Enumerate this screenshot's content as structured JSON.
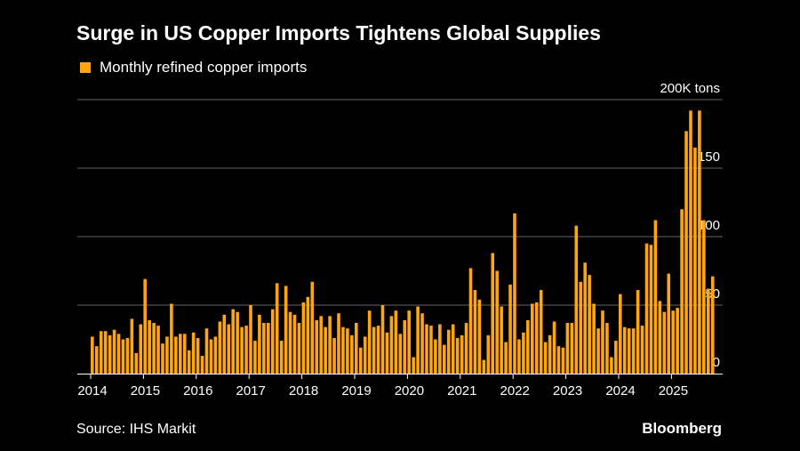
{
  "header": {
    "title": "Surge in US Copper Imports Tightens Global Supplies",
    "legend_label": "Monthly refined copper imports"
  },
  "footer": {
    "source": "Source: IHS Markit",
    "brand": "Bloomberg"
  },
  "colors": {
    "bar": "#ffa60f",
    "grid": "#666666",
    "background": "#000000"
  },
  "chart_data": {
    "type": "bar",
    "title": "Surge in US Copper Imports Tightens Global Supplies",
    "legend": [
      "Monthly refined copper imports"
    ],
    "xlabel": "",
    "ylabel": "tons",
    "unit_label": "200K tons",
    "ylim": [
      0,
      200
    ],
    "y_ticks": [
      {
        "value": 0,
        "label": "0"
      },
      {
        "value": 50,
        "label": "50"
      },
      {
        "value": 100,
        "label": "100"
      },
      {
        "value": 150,
        "label": "150"
      },
      {
        "value": 200,
        "label": "200K tons"
      }
    ],
    "x_ticks": [
      "2014",
      "2015",
      "2016",
      "2017",
      "2018",
      "2019",
      "2020",
      "2021",
      "2022",
      "2023",
      "2024",
      "2025"
    ],
    "start": "2014-01",
    "values": [
      27,
      20,
      31,
      31,
      28,
      32,
      29,
      25,
      26,
      40,
      15,
      36,
      69,
      39,
      37,
      35,
      22,
      27,
      51,
      27,
      29,
      29,
      17,
      30,
      26,
      13,
      33,
      25,
      27,
      38,
      43,
      36,
      47,
      45,
      34,
      35,
      50,
      24,
      43,
      37,
      37,
      47,
      66,
      24,
      64,
      45,
      43,
      37,
      52,
      56,
      67,
      39,
      42,
      34,
      42,
      26,
      44,
      34,
      33,
      28,
      37,
      19,
      27,
      46,
      34,
      35,
      50,
      30,
      42,
      46,
      29,
      39,
      46,
      12,
      49,
      44,
      36,
      35,
      25,
      36,
      21,
      32,
      36,
      26,
      28,
      37,
      77,
      61,
      54,
      10,
      28,
      88,
      75,
      49,
      23,
      65,
      117,
      25,
      30,
      39,
      51,
      52,
      61,
      23,
      28,
      38,
      20,
      19,
      37,
      37,
      108,
      67,
      81,
      72,
      51,
      33,
      46,
      37,
      12,
      24,
      58,
      34,
      33,
      33,
      61,
      35,
      95,
      94,
      112,
      53,
      45,
      73,
      46,
      48,
      120,
      177,
      192,
      165,
      192,
      112,
      62,
      71
    ]
  }
}
